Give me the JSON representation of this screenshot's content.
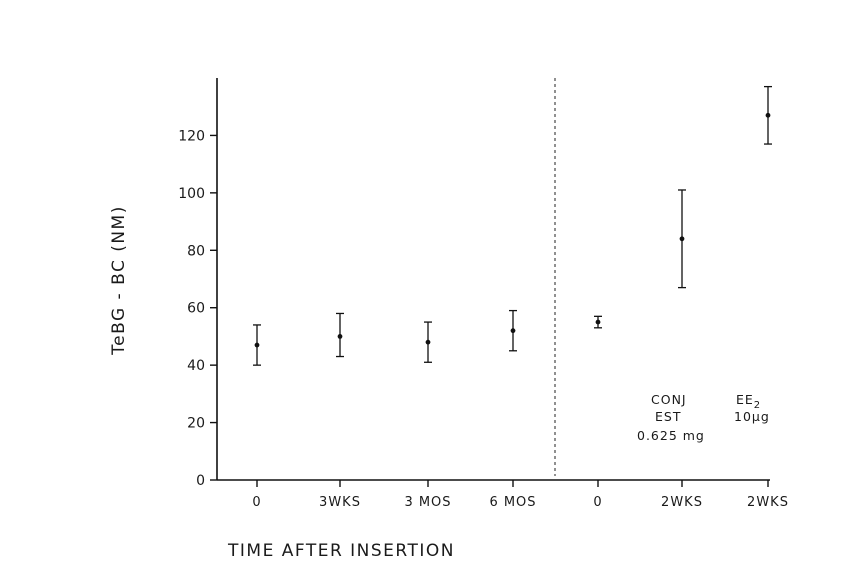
{
  "chart_data": {
    "type": "scatter",
    "title": "",
    "xlabel": "TIME AFTER INSERTION",
    "ylabel": "TeBG - BC (NM)",
    "ylim": [
      0,
      140
    ],
    "yticks": [
      0,
      20,
      40,
      60,
      80,
      100,
      120
    ],
    "grid": false,
    "categories": [
      "0",
      "3WKS",
      "3 MOS",
      "6 MOS",
      "0",
      "2WKS",
      "2WKS"
    ],
    "series": [
      {
        "values": [
          47,
          50,
          48,
          52,
          55,
          84,
          127
        ],
        "error_low": [
          40,
          43,
          41,
          45,
          53,
          67,
          117
        ],
        "error_high": [
          54,
          58,
          55,
          59,
          57,
          101,
          137
        ]
      }
    ],
    "divider_after_category": 3,
    "annotations": [
      {
        "id": "conj",
        "lines": [
          "CONJ",
          "EST",
          "0.625 mg"
        ]
      },
      {
        "id": "ee2",
        "line1": "EE",
        "subscript": "2",
        "line2": "10µg"
      }
    ]
  }
}
